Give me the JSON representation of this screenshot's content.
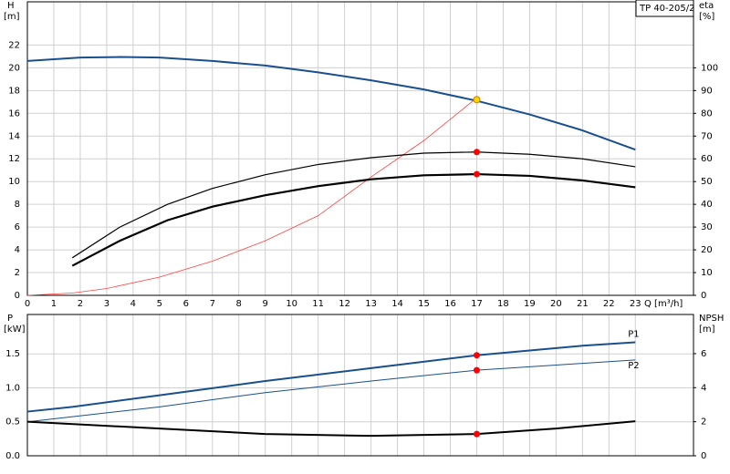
{
  "chart_data": [
    {
      "type": "line",
      "title": "TP 40-205/2",
      "xlabel": "Q [m³/h]",
      "ylabel": "H",
      "yunit": "[m]",
      "y2label": "eta",
      "y2unit": "[%]",
      "xlim": [
        0,
        25.2
      ],
      "xticks": [
        0,
        1,
        2,
        3,
        4,
        5,
        6,
        7,
        8,
        9,
        10,
        11,
        12,
        13,
        14,
        15,
        16,
        17,
        18,
        19,
        20,
        21,
        22,
        23
      ],
      "ylim": [
        0,
        25.8
      ],
      "yticks": [
        0,
        2,
        4,
        6,
        8,
        10,
        12,
        14,
        16,
        18,
        20,
        22
      ],
      "y2lim": [
        0,
        129
      ],
      "y2ticks": [
        0,
        10,
        20,
        30,
        40,
        50,
        60,
        70,
        80,
        90,
        100
      ],
      "grid": true,
      "series": [
        {
          "color": "#1a4f8f",
          "width": 2,
          "x": [
            0,
            2,
            3.5,
            5,
            7,
            9,
            11,
            13,
            15,
            17,
            19,
            21,
            23
          ],
          "values": [
            20.6,
            20.9,
            20.95,
            20.9,
            20.6,
            20.2,
            19.6,
            18.9,
            18.1,
            17.1,
            15.9,
            14.5,
            12.8
          ]
        },
        {
          "color": "#ff4040",
          "width": 0.8,
          "axis": "y2",
          "x": [
            0,
            1.7,
            3,
            5,
            7,
            9,
            11,
            13,
            15,
            17
          ],
          "values": [
            0,
            1,
            3,
            8,
            15,
            24,
            35,
            52,
            68,
            86.8
          ]
        },
        {
          "color": "#000000",
          "width": 1.2,
          "axis": "y2",
          "x": [
            1.7,
            3.5,
            5.3,
            7,
            9,
            11,
            13,
            15,
            17,
            19,
            21,
            23
          ],
          "values": [
            16.5,
            30,
            40,
            47,
            53,
            57.5,
            60.5,
            62.5,
            63,
            62,
            60,
            56.5
          ]
        },
        {
          "color": "#000000",
          "width": 2.2,
          "axis": "y2",
          "x": [
            1.7,
            3.5,
            5.3,
            7,
            9,
            11,
            13,
            15,
            17,
            19,
            21,
            23
          ],
          "values": [
            13,
            24,
            33,
            39,
            44,
            48,
            51,
            52.75,
            53.25,
            52.5,
            50.5,
            47.5
          ]
        }
      ],
      "points": [
        {
          "x": 17,
          "y": 17.2,
          "color": "#ffd700"
        },
        {
          "x": 17,
          "y": 63,
          "axis": "y2",
          "color": "#ff0000"
        },
        {
          "x": 17,
          "y": 53.25,
          "axis": "y2",
          "color": "#ff0000"
        }
      ]
    },
    {
      "type": "line",
      "ylabel": "P",
      "yunit": "[kW]",
      "y2label": "NPSH",
      "y2unit": "[m]",
      "xlim": [
        0,
        25.2
      ],
      "ylim": [
        0,
        2.08
      ],
      "yticks": [
        {
          "value": 0,
          "label": "0.0"
        },
        0.5,
        {
          "value": 1,
          "label": "1.0"
        },
        1.5
      ],
      "y2lim": [
        0,
        8.3
      ],
      "y2ticks": [
        0,
        2,
        4,
        6
      ],
      "grid": true,
      "series": [
        {
          "name": "P1",
          "color": "#1a4f8f",
          "width": 2,
          "x": [
            0,
            1.7,
            5,
            9,
            13,
            17,
            21,
            23
          ],
          "values": [
            0.65,
            0.72,
            0.89,
            1.1,
            1.29,
            1.48,
            1.62,
            1.67
          ]
        },
        {
          "name": "P2",
          "color": "#1a4f8f",
          "width": 1,
          "x": [
            0,
            5,
            9,
            13,
            17,
            21,
            23
          ],
          "values": [
            0.5,
            0.72,
            0.93,
            1.1,
            1.26,
            1.36,
            1.41
          ]
        },
        {
          "color": "#000000",
          "width": 2,
          "axis": "y2",
          "x": [
            0,
            5,
            9,
            13,
            17,
            20,
            23
          ],
          "values": [
            2.0,
            1.6,
            1.28,
            1.17,
            1.28,
            1.6,
            2.03
          ]
        }
      ],
      "points": [
        {
          "x": 17,
          "y": 1.48,
          "color": "#ff0000"
        },
        {
          "x": 17,
          "y": 1.26,
          "color": "#ff0000"
        },
        {
          "x": 17,
          "y": 1.28,
          "axis": "y2",
          "color": "#ff0000"
        }
      ]
    }
  ]
}
